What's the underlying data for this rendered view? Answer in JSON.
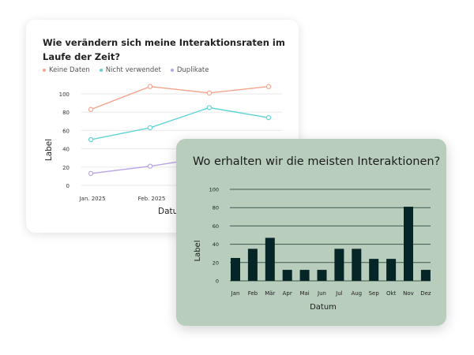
{
  "chart_data": [
    {
      "type": "line",
      "title": "Wie verändern sich meine Interaktionsraten im Laufe der Zeit?",
      "xlabel": "Datum",
      "ylabel": "Label",
      "categories": [
        "Jan. 2025",
        "Feb. 2025",
        "",
        ""
      ],
      "yticks": [
        0,
        20,
        40,
        60,
        80,
        100
      ],
      "ylim": [
        0,
        100
      ],
      "grid": true,
      "legend_position": "top-left",
      "series": [
        {
          "name": "Keine Daten",
          "color": "#f7a48c",
          "values": [
            83,
            108,
            101,
            108
          ]
        },
        {
          "name": "Nicht verwendet",
          "color": "#5fd3d6",
          "values": [
            50,
            63,
            85,
            74
          ]
        },
        {
          "name": "Duplikate",
          "color": "#b9a3e6",
          "values": [
            13,
            21,
            31,
            null
          ]
        }
      ]
    },
    {
      "type": "bar",
      "title": "Wo erhalten wir die meisten Interaktionen?",
      "xlabel": "Datum",
      "ylabel": "Label",
      "categories": [
        "Jan",
        "Feb",
        "Mär",
        "Apr",
        "Mai",
        "Jun",
        "Jul",
        "Aug",
        "Sep",
        "Okt",
        "Nov",
        "Dez"
      ],
      "values": [
        25,
        35,
        47,
        12,
        12,
        12,
        35,
        35,
        24,
        24,
        81,
        12
      ],
      "yticks": [
        0,
        20,
        40,
        60,
        80,
        100
      ],
      "ylim": [
        0,
        100
      ],
      "grid": true,
      "bar_color": "#062526",
      "background_color": "#b8cdbc"
    }
  ]
}
